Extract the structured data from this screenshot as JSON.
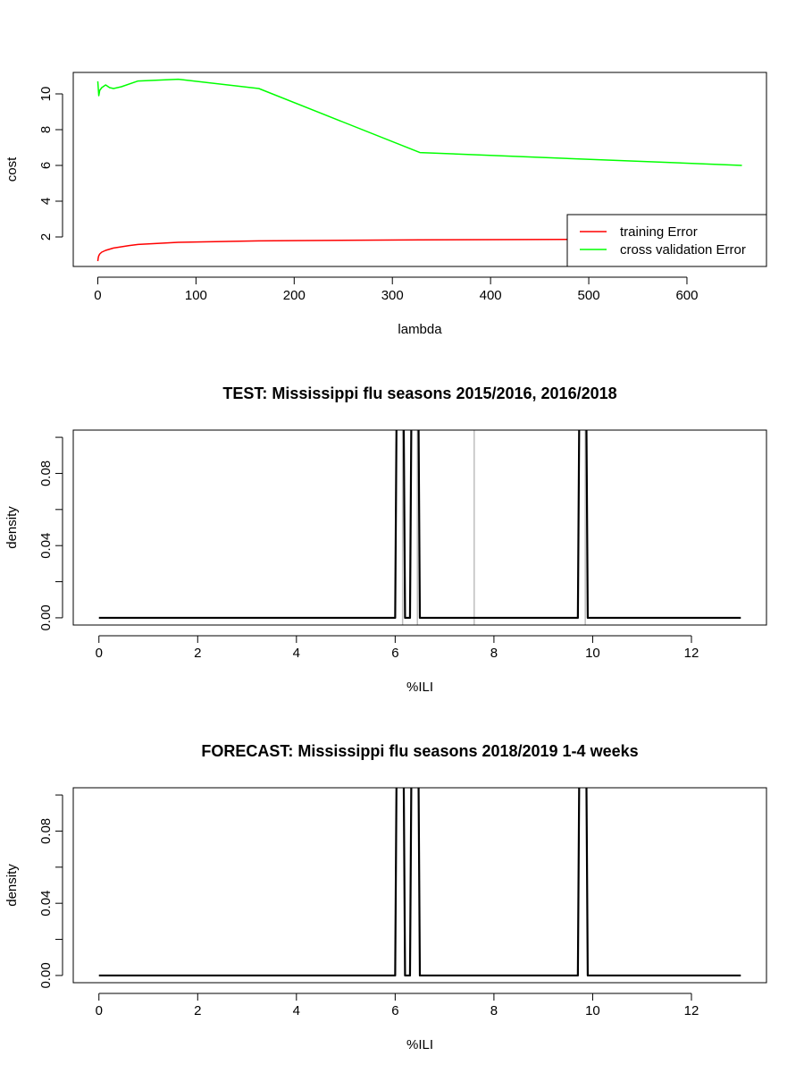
{
  "chart_data": [
    {
      "type": "line",
      "title": "",
      "xlabel": "lambda",
      "ylabel": "cost",
      "xlim": [
        -25,
        681
      ],
      "ylim": [
        0.35,
        11.2
      ],
      "x_ticks": [
        0,
        100,
        200,
        300,
        400,
        500,
        600
      ],
      "y_ticks": [
        2,
        4,
        6,
        8,
        10
      ],
      "legend": {
        "placement": "bottom-right"
      },
      "series": [
        {
          "name": "training Error",
          "color": "#ff0000",
          "x": [
            0,
            0.5,
            1,
            2,
            4,
            8,
            16,
            32,
            41,
            82,
            164,
            328,
            480
          ],
          "y": [
            0.65,
            0.85,
            0.95,
            1.05,
            1.15,
            1.25,
            1.38,
            1.52,
            1.58,
            1.7,
            1.78,
            1.84,
            1.86
          ]
        },
        {
          "name": "cross validation Error",
          "color": "#00ff00",
          "x": [
            0,
            1,
            2,
            4,
            8,
            12,
            16,
            24,
            41,
            82,
            164,
            328,
            656
          ],
          "y": [
            10.7,
            9.9,
            10.2,
            10.35,
            10.5,
            10.35,
            10.3,
            10.4,
            10.72,
            10.82,
            10.3,
            6.72,
            6.0
          ]
        }
      ]
    },
    {
      "type": "line",
      "title": "TEST: Mississippi  flu seasons 2015/2016, 2016/2018",
      "xlabel": "%ILI",
      "ylabel": "density",
      "xlim": [
        -0.52,
        13.52
      ],
      "ylim": [
        -0.004,
        0.104
      ],
      "x_ticks": [
        0,
        2,
        4,
        6,
        8,
        10,
        12
      ],
      "y_ticks": [
        0.0,
        0.02,
        0.04,
        0.06,
        0.08,
        0.1
      ],
      "y_tick_labels": [
        "0.00",
        "",
        "0.04",
        "",
        "0.08",
        ""
      ],
      "vlines": [
        6.15,
        6.45,
        7.6,
        9.85
      ],
      "series": [
        {
          "color": "#000000",
          "x": [
            0,
            6.0,
            6.05,
            6.15,
            6.2,
            6.3,
            6.35,
            6.45,
            6.5,
            9.7,
            9.75,
            9.85,
            9.9,
            13
          ],
          "y": [
            0,
            0,
            0.2,
            0.2,
            0,
            0,
            0.2,
            0.2,
            0,
            0,
            0.2,
            0.2,
            0,
            0
          ]
        }
      ]
    },
    {
      "type": "line",
      "title": "FORECAST: Mississippi flu seasons 2018/2019 1-4 weeks",
      "xlabel": "%ILI",
      "ylabel": "density",
      "xlim": [
        -0.52,
        13.52
      ],
      "ylim": [
        -0.004,
        0.104
      ],
      "x_ticks": [
        0,
        2,
        4,
        6,
        8,
        10,
        12
      ],
      "y_ticks": [
        0.0,
        0.02,
        0.04,
        0.06,
        0.08,
        0.1
      ],
      "y_tick_labels": [
        "0.00",
        "",
        "0.04",
        "",
        "0.08",
        ""
      ],
      "vlines": [],
      "series": [
        {
          "color": "#000000",
          "x": [
            0,
            6.0,
            6.05,
            6.15,
            6.2,
            6.3,
            6.35,
            6.45,
            6.5,
            9.7,
            9.75,
            9.85,
            9.9,
            13
          ],
          "y": [
            0,
            0,
            0.2,
            0.2,
            0,
            0,
            0.2,
            0.2,
            0,
            0,
            0.2,
            0.2,
            0,
            0
          ]
        }
      ]
    }
  ]
}
